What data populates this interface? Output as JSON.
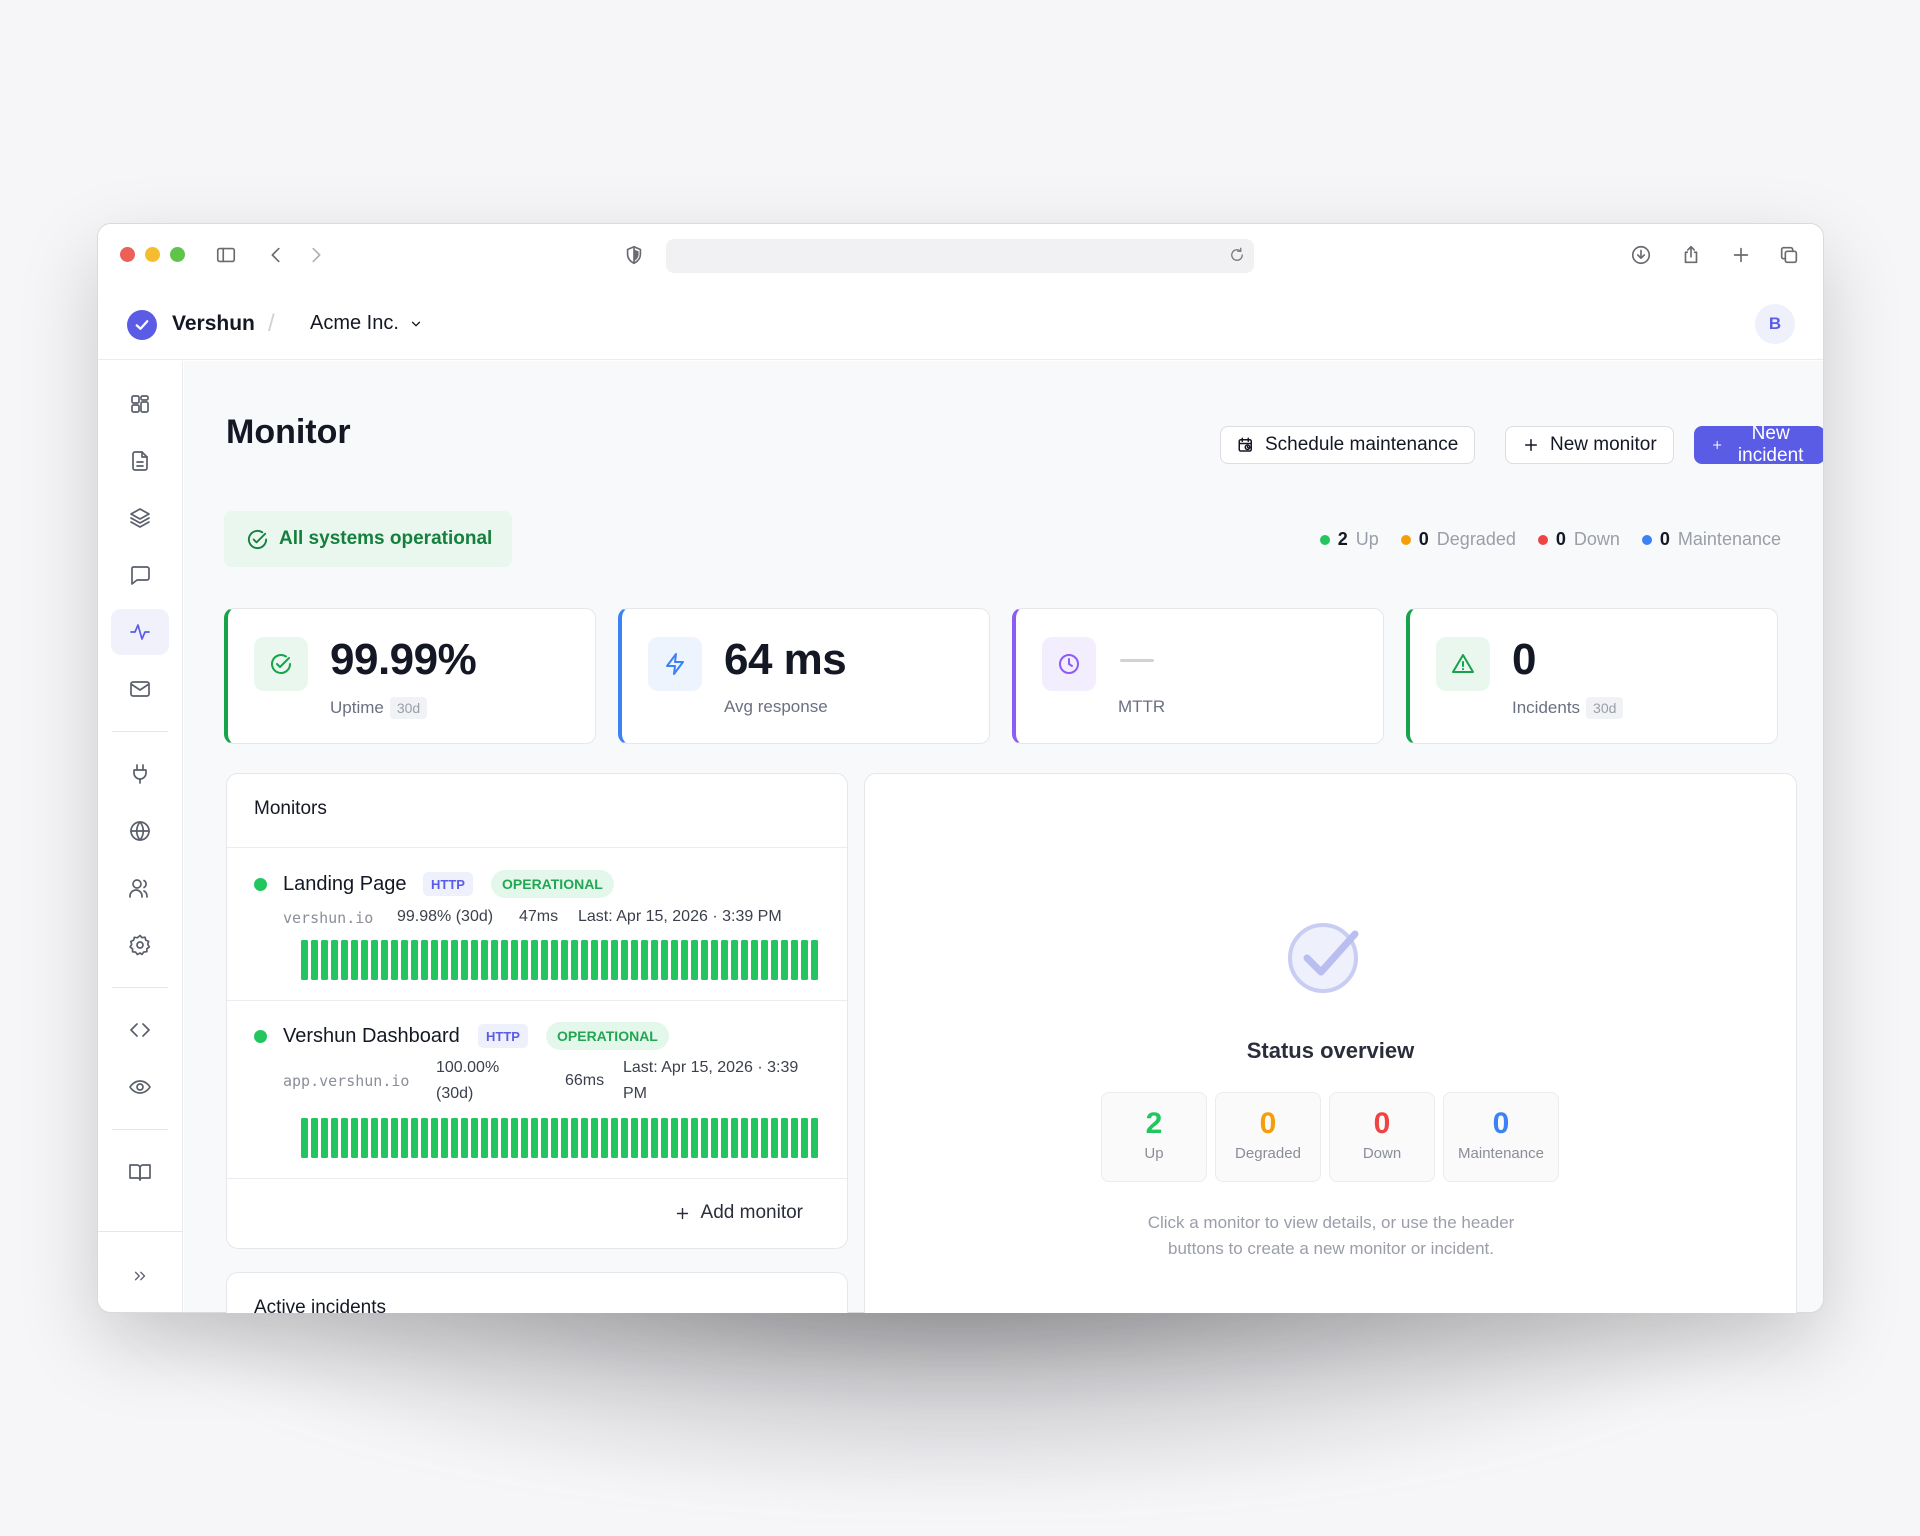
{
  "app": {
    "brand": "Vershun",
    "org": "Acme Inc.",
    "avatar_initial": "B"
  },
  "sidebar": {
    "items": [
      {
        "icon": "dashboard-icon"
      },
      {
        "icon": "document-icon"
      },
      {
        "icon": "layers-icon"
      },
      {
        "icon": "chat-icon"
      },
      {
        "icon": "activity-icon",
        "active": true
      },
      {
        "icon": "mail-icon"
      },
      {
        "icon": "plug-icon"
      },
      {
        "icon": "globe-icon"
      },
      {
        "icon": "users-icon"
      },
      {
        "icon": "gear-icon"
      },
      {
        "icon": "code-icon"
      },
      {
        "icon": "eye-icon"
      },
      {
        "icon": "book-icon"
      },
      {
        "icon": "expand-icon"
      }
    ]
  },
  "page": {
    "title": "Monitor",
    "buttons": {
      "schedule_maintenance": "Schedule maintenance",
      "new_monitor": "New monitor",
      "new_incident": "New incident"
    },
    "status_banner": "All systems operational",
    "legend": [
      {
        "count": "2",
        "label": "Up",
        "color": "#22c55e"
      },
      {
        "count": "0",
        "label": "Degraded",
        "color": "#f59e0b"
      },
      {
        "count": "0",
        "label": "Down",
        "color": "#ef4444"
      },
      {
        "count": "0",
        "label": "Maintenance",
        "color": "#3b82f6"
      }
    ]
  },
  "stats": [
    {
      "value": "99.99%",
      "label": "Uptime",
      "badge": "30d",
      "accent": "#16a34a",
      "icon": "check-circle-icon"
    },
    {
      "value": "64 ms",
      "label": "Avg response",
      "badge": "",
      "accent": "#3b82f6",
      "icon": "lightning-icon"
    },
    {
      "value": "",
      "label": "MTTR",
      "badge": "",
      "accent": "#8b5cf6",
      "icon": "clock-icon"
    },
    {
      "value": "0",
      "label": "Incidents",
      "badge": "30d",
      "accent": "#16a34a",
      "icon": "warning-icon"
    }
  ],
  "monitors": {
    "title": "Monitors",
    "items": [
      {
        "name": "Landing Page",
        "type": "HTTP",
        "status": "OPERATIONAL",
        "url": "vershun.io",
        "uptime": "99.98% (30d)",
        "response": "47ms",
        "last": "Last: Apr 15, 2026 · 3:39 PM"
      },
      {
        "name": "Vershun Dashboard",
        "type": "HTTP",
        "status": "OPERATIONAL",
        "url": "app.vershun.io",
        "uptime_line1": "100.00%",
        "uptime_line2": "(30d)",
        "response": "66ms",
        "last_line1": "Last: Apr 15, 2026 · 3:39",
        "last_line2": "PM"
      }
    ],
    "add_label": "Add monitor"
  },
  "incidents": {
    "title": "Active incidents"
  },
  "overview": {
    "title": "Status overview",
    "counts": [
      {
        "value": "2",
        "label": "Up",
        "color": "#22c55e"
      },
      {
        "value": "0",
        "label": "Degraded",
        "color": "#f59e0b"
      },
      {
        "value": "0",
        "label": "Down",
        "color": "#ef4444"
      },
      {
        "value": "0",
        "label": "Maintenance",
        "color": "#3b82f6"
      }
    ],
    "hint": "Click a monitor to view details, or use the header buttons to create a new monitor or incident."
  }
}
